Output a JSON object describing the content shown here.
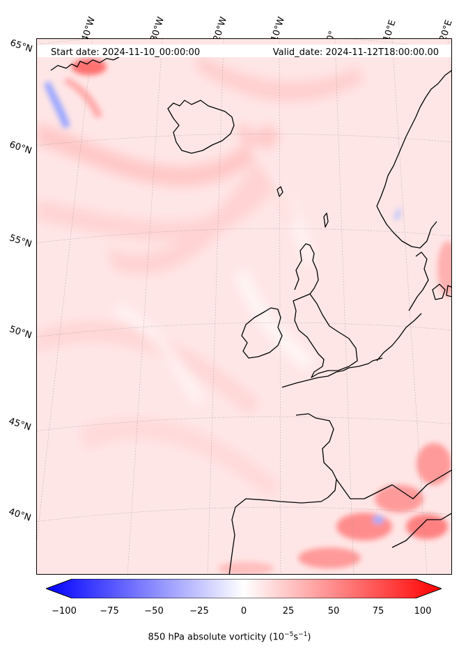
{
  "map": {
    "start_date": "Start date: 2024-11-10_00:00:00",
    "valid_date": "Valid_date: 2024-11-12T18:00:00.00",
    "lon_labels": [
      "40°W",
      "30°W",
      "20°W",
      "10°W",
      "0°",
      "10°E",
      "20°E"
    ],
    "lat_labels": [
      "65°N",
      "60°N",
      "55°N",
      "50°N",
      "45°N",
      "40°N"
    ],
    "field": "850 hPa absolute vorticity",
    "background_color": "#ffe6e6",
    "coastline_color": "#000000"
  },
  "colorbar": {
    "ticks": [
      "−100",
      "−75",
      "−50",
      "−25",
      "0",
      "25",
      "50",
      "75",
      "100"
    ],
    "label": "850 hPa absolute vorticity (10",
    "label_exp1": "−5",
    "label_mid": "s",
    "label_exp2": "−1",
    "label_end": ")",
    "colors": {
      "min": "#0000ff",
      "mid": "#ffffff",
      "max": "#ff0000"
    },
    "range": [
      -100,
      100
    ],
    "extend": "both"
  }
}
